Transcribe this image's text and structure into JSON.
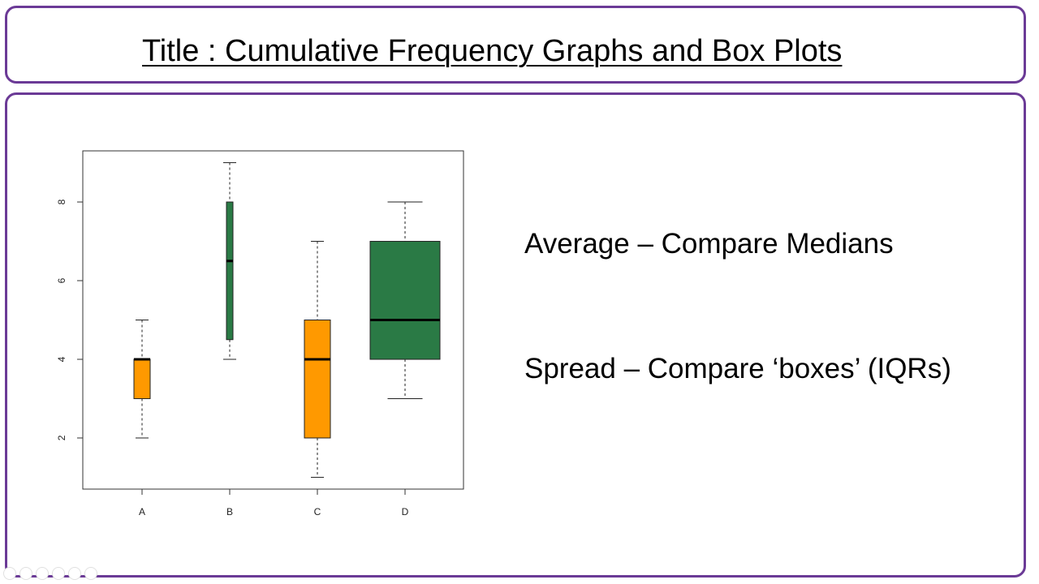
{
  "title": "Title : Cumulative Frequency Graphs and Box Plots",
  "notes": {
    "average": "Average – Compare Medians",
    "spread": "Spread – Compare ‘boxes’ (IQRs)"
  },
  "colors": {
    "accent": "#6b3a96",
    "orange": "#ff9900",
    "green": "#2a7a45"
  },
  "chart_data": {
    "type": "box",
    "categories": [
      "A",
      "B",
      "C",
      "D"
    ],
    "boxes": [
      {
        "category": "A",
        "min": 2,
        "q1": 3,
        "median": 4,
        "q3": 4,
        "max": 5,
        "color": "#ff9900"
      },
      {
        "category": "B",
        "min": 4,
        "q1": 4.5,
        "median": 6.5,
        "q3": 8,
        "max": 9,
        "color": "#2a7a45"
      },
      {
        "category": "C",
        "min": 1,
        "q1": 2,
        "median": 4,
        "q3": 5,
        "max": 7,
        "color": "#ff9900"
      },
      {
        "category": "D",
        "min": 3,
        "q1": 4,
        "median": 5,
        "q3": 7,
        "max": 8,
        "color": "#2a7a45"
      }
    ],
    "y_ticks": [
      2,
      4,
      6,
      8
    ],
    "ylim": [
      0.7,
      9.3
    ],
    "title": "",
    "xlabel": "",
    "ylabel": "",
    "grid": false
  },
  "nav_icons": [
    "back-icon",
    "forward-icon",
    "pen-icon",
    "slides-icon",
    "zoom-icon",
    "more-icon"
  ]
}
